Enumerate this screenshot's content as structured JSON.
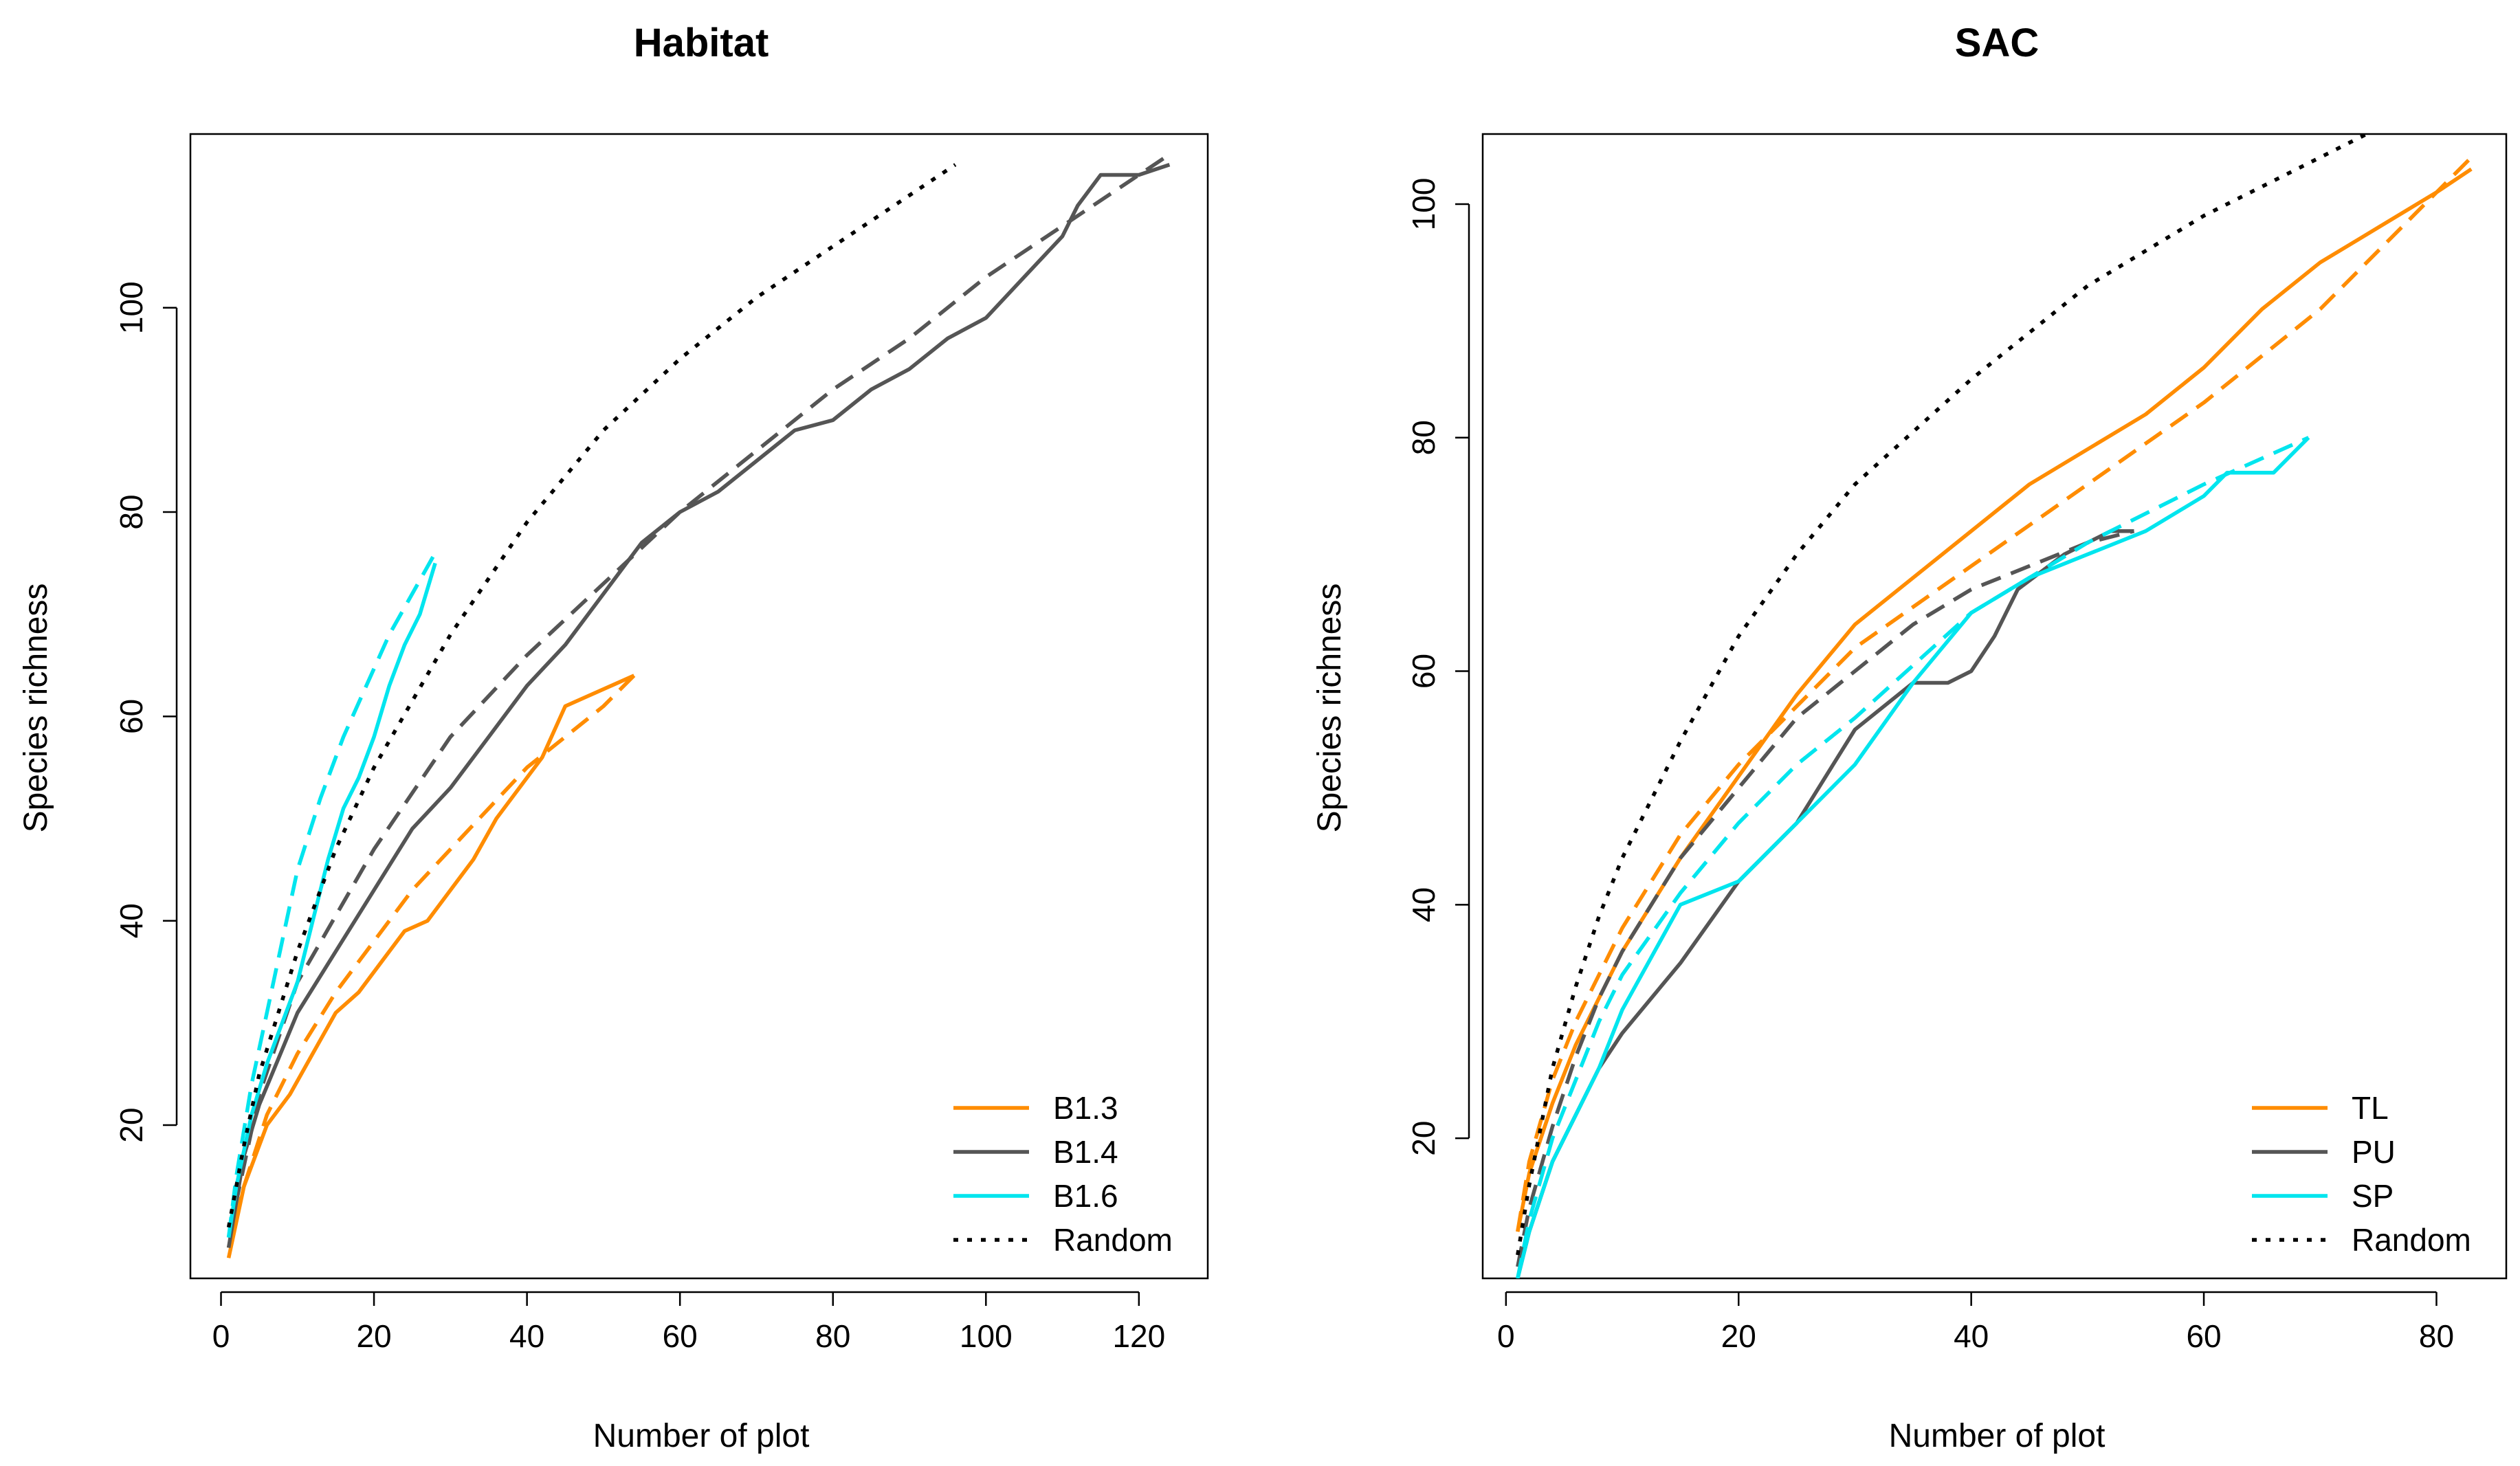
{
  "chart_data": [
    {
      "type": "line",
      "title": "Habitat",
      "xlabel": "Number of plot",
      "ylabel": "Species richness",
      "xlim": [
        -4,
        129
      ],
      "ylim": [
        5,
        117
      ],
      "xticks": [
        0,
        20,
        40,
        60,
        80,
        100,
        120
      ],
      "yticks": [
        20,
        40,
        60,
        80,
        100
      ],
      "legend": {
        "position": "bottom-right",
        "entries": [
          {
            "label": "B1.3",
            "color": "#ff8c00",
            "style": "solid"
          },
          {
            "label": "B1.4",
            "color": "#555555",
            "style": "solid"
          },
          {
            "label": "B1.6",
            "color": "#00e5ee",
            "style": "solid"
          },
          {
            "label": "Random",
            "color": "#000000",
            "style": "dotted"
          }
        ]
      },
      "series": [
        {
          "name": "B1.3",
          "color": "#ff8c00",
          "style": "solid",
          "x": [
            1,
            3,
            6,
            9,
            12,
            15,
            18,
            21,
            24,
            27,
            30,
            33,
            36,
            39,
            42,
            45,
            48,
            51,
            54
          ],
          "y": [
            7,
            14,
            20,
            23,
            27,
            31,
            33,
            36,
            39,
            40,
            43,
            46,
            50,
            53,
            56,
            61,
            62,
            63,
            64
          ]
        },
        {
          "name": "B1.3 fit",
          "color": "#ff8c00",
          "style": "dashed",
          "x": [
            1,
            3,
            6,
            10,
            15,
            20,
            25,
            30,
            35,
            40,
            45,
            50,
            54
          ],
          "y": [
            8,
            14,
            21,
            27,
            33,
            38,
            43,
            47,
            51,
            55,
            58,
            61,
            64
          ]
        },
        {
          "name": "B1.4",
          "color": "#555555",
          "style": "solid",
          "x": [
            1,
            3,
            5,
            10,
            15,
            20,
            25,
            30,
            35,
            40,
            45,
            50,
            55,
            60,
            65,
            70,
            75,
            80,
            85,
            90,
            95,
            100,
            105,
            110,
            112,
            115,
            117,
            120,
            124
          ],
          "y": [
            8,
            17,
            22,
            31,
            37,
            43,
            49,
            53,
            58,
            63,
            67,
            72,
            77,
            80,
            82,
            85,
            88,
            89,
            92,
            94,
            97,
            99,
            103,
            107,
            110,
            113,
            113,
            113,
            114
          ]
        },
        {
          "name": "B1.4 fit",
          "color": "#555555",
          "style": "dashed",
          "x": [
            1,
            5,
            10,
            20,
            30,
            40,
            50,
            60,
            70,
            80,
            90,
            100,
            110,
            124
          ],
          "y": [
            9,
            23,
            34,
            47,
            58,
            66,
            73,
            80,
            86,
            92,
            97,
            103,
            108,
            115
          ]
        },
        {
          "name": "B1.6",
          "color": "#00e5ee",
          "style": "solid",
          "x": [
            1,
            2,
            4,
            6,
            8,
            10,
            12,
            14,
            16,
            18,
            20,
            22,
            24,
            26,
            28
          ],
          "y": [
            9,
            14,
            21,
            26,
            30,
            34,
            40,
            46,
            51,
            54,
            58,
            63,
            67,
            70,
            75
          ]
        },
        {
          "name": "B1.6 fit",
          "color": "#00e5ee",
          "style": "dashed",
          "x": [
            1,
            2,
            4,
            6,
            8,
            10,
            13,
            16,
            19,
            22,
            25,
            28
          ],
          "y": [
            9,
            15,
            24,
            31,
            38,
            45,
            52,
            58,
            63,
            68,
            72,
            76
          ]
        },
        {
          "name": "Random",
          "color": "#000000",
          "style": "dotted",
          "x": [
            1,
            3,
            5,
            10,
            15,
            20,
            30,
            40,
            50,
            60,
            70,
            80,
            90,
            96
          ],
          "y": [
            10,
            18,
            25,
            37,
            47,
            55,
            68,
            79,
            88,
            95,
            101,
            106,
            111,
            114
          ]
        }
      ]
    },
    {
      "type": "line",
      "title": "SAC",
      "xlabel": "Number of plot",
      "ylabel": "Species richness",
      "xlim": [
        -2,
        86
      ],
      "ylim": [
        8,
        106
      ],
      "xticks": [
        0,
        20,
        40,
        60,
        80
      ],
      "yticks": [
        20,
        40,
        60,
        80,
        100
      ],
      "legend": {
        "position": "bottom-right",
        "entries": [
          {
            "label": "TL",
            "color": "#ff8c00",
            "style": "solid"
          },
          {
            "label": "PU",
            "color": "#555555",
            "style": "solid"
          },
          {
            "label": "SP",
            "color": "#00e5ee",
            "style": "solid"
          },
          {
            "label": "Random",
            "color": "#000000",
            "style": "dotted"
          }
        ]
      },
      "series": [
        {
          "name": "TL",
          "color": "#ff8c00",
          "style": "solid",
          "x": [
            1,
            2,
            4,
            6,
            8,
            10,
            15,
            20,
            25,
            30,
            35,
            40,
            45,
            50,
            55,
            60,
            65,
            70,
            75,
            80,
            83
          ],
          "y": [
            12,
            17,
            23,
            28,
            32,
            36,
            44,
            51,
            58,
            64,
            68,
            72,
            76,
            79,
            82,
            86,
            91,
            95,
            98,
            101,
            103
          ]
        },
        {
          "name": "TL fit",
          "color": "#ff8c00",
          "style": "dashed",
          "x": [
            1,
            2,
            4,
            6,
            8,
            10,
            15,
            20,
            25,
            30,
            40,
            50,
            60,
            70,
            83
          ],
          "y": [
            12,
            18,
            25,
            30,
            34,
            38,
            46,
            52,
            57,
            62,
            69,
            76,
            83,
            91,
            104
          ]
        },
        {
          "name": "PU",
          "color": "#555555",
          "style": "solid",
          "x": [
            1,
            2,
            4,
            6,
            8,
            10,
            15,
            20,
            25,
            30,
            35,
            38,
            40,
            42,
            44,
            48,
            50,
            52,
            54
          ],
          "y": [
            8,
            12,
            18,
            22,
            26,
            29,
            35,
            42,
            47,
            55,
            59,
            59,
            60,
            63,
            67,
            70,
            71,
            72,
            72
          ]
        },
        {
          "name": "PU fit",
          "color": "#555555",
          "style": "dashed",
          "x": [
            1,
            2,
            4,
            6,
            8,
            10,
            15,
            20,
            25,
            30,
            35,
            40,
            45,
            50,
            54
          ],
          "y": [
            9,
            14,
            21,
            27,
            32,
            36,
            44,
            50,
            56,
            60,
            64,
            67,
            69,
            71,
            72
          ]
        },
        {
          "name": "SP",
          "color": "#00e5ee",
          "style": "solid",
          "x": [
            1,
            2,
            4,
            6,
            8,
            10,
            15,
            20,
            25,
            30,
            35,
            40,
            45,
            50,
            55,
            60,
            62,
            64,
            66,
            68,
            69
          ],
          "y": [
            8,
            12,
            18,
            22,
            26,
            31,
            40,
            42,
            47,
            52,
            59,
            65,
            68,
            70,
            72,
            75,
            77,
            77,
            77,
            79,
            80
          ]
        },
        {
          "name": "SP fit",
          "color": "#00e5ee",
          "style": "dashed",
          "x": [
            1,
            2,
            4,
            6,
            8,
            10,
            15,
            20,
            25,
            30,
            40,
            50,
            60,
            69
          ],
          "y": [
            8,
            13,
            20,
            25,
            30,
            34,
            41,
            47,
            52,
            56,
            65,
            71,
            76,
            80
          ]
        },
        {
          "name": "Random",
          "color": "#000000",
          "style": "dotted",
          "x": [
            1,
            2,
            4,
            6,
            8,
            10,
            15,
            20,
            25,
            30,
            40,
            50,
            60,
            70,
            76
          ],
          "y": [
            10,
            16,
            26,
            33,
            39,
            44,
            54,
            63,
            70,
            76,
            85,
            93,
            99,
            104,
            107
          ]
        }
      ]
    }
  ]
}
